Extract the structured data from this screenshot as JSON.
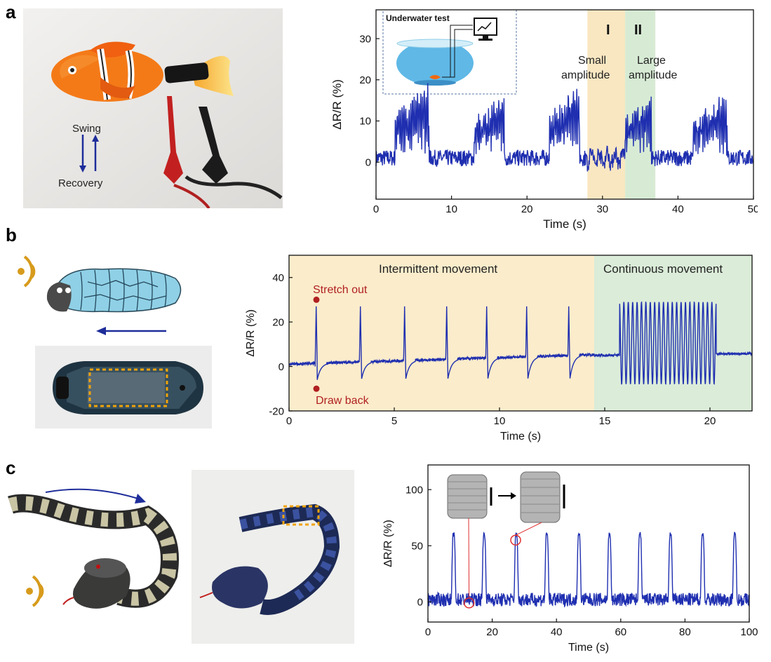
{
  "panel_letters": [
    "a",
    "b",
    "c"
  ],
  "panel_a": {
    "photo_labels": {
      "swing": "Swing",
      "recovery": "Recovery"
    },
    "inset_title": "Underwater test",
    "region_I": {
      "roman": "I",
      "label_line1": "Small",
      "label_line2": "amplitude"
    },
    "region_II": {
      "roman": "II",
      "label_line1": "Large",
      "label_line2": "amplitude"
    },
    "colors": {
      "region_I": "#f9e7c2",
      "region_II": "#d7ebd4",
      "signal": "#1f2fb0"
    }
  },
  "panel_b": {
    "region_1_label": "Intermittent movement",
    "region_2_label": "Continuous movement",
    "annot_stretch": "Stretch out",
    "annot_draw": "Draw back",
    "colors": {
      "region_1": "#fbeccb",
      "region_2": "#dbecd9",
      "annot": "#b02020",
      "signal": "#1f2fb0"
    }
  },
  "panel_c": {
    "colors": {
      "signal": "#1f2fb0",
      "circle": "#e03030"
    }
  },
  "chart_data": [
    {
      "type": "line",
      "xlabel": "Time (s)",
      "ylabel": "ΔR/R (%)",
      "xlim": [
        0,
        50
      ],
      "ylim": [
        -9,
        37
      ],
      "xticks": [
        0,
        10,
        20,
        30,
        40,
        50
      ],
      "yticks": [
        0,
        10,
        20,
        30
      ],
      "regions": [
        {
          "label": "I",
          "x": [
            28,
            33
          ]
        },
        {
          "label": "II",
          "x": [
            33,
            37
          ]
        }
      ],
      "bursts": [
        {
          "x": [
            2.5,
            7
          ],
          "amp": 14
        },
        {
          "x": [
            13,
            17
          ],
          "amp": 12
        },
        {
          "x": [
            23,
            27
          ],
          "amp": 14
        },
        {
          "x": [
            33,
            36.5
          ],
          "amp": 12
        },
        {
          "x": [
            42,
            46.5
          ],
          "amp": 12
        }
      ],
      "baseline": 1
    },
    {
      "type": "line",
      "xlabel": "Time (s)",
      "ylabel": "ΔR/R (%)",
      "xlim": [
        0,
        22
      ],
      "ylim": [
        -20,
        50
      ],
      "xticks": [
        0,
        5,
        10,
        15,
        20
      ],
      "yticks": [
        -20,
        0,
        20,
        40
      ],
      "regions": [
        {
          "label": "Intermittent movement",
          "x": [
            0,
            14.5
          ]
        },
        {
          "label": "Continuous movement",
          "x": [
            14.5,
            22
          ]
        }
      ],
      "spikes_x": [
        1.3,
        3.4,
        5.5,
        7.5,
        9.4,
        11.3,
        13.3
      ],
      "spike_peak": 27,
      "spike_trough": -6,
      "continuous": {
        "x": [
          15.7,
          20.3
        ],
        "high": 29,
        "low": -8,
        "cycles": 22
      },
      "points": [
        {
          "label": "Stretch out",
          "x": 1.3,
          "y": 30
        },
        {
          "label": "Draw back",
          "x": 1.3,
          "y": -10
        }
      ]
    },
    {
      "type": "line",
      "xlabel": "Time (s)",
      "ylabel": "ΔR/R (%)",
      "xlim": [
        0,
        100
      ],
      "ylim": [
        -18,
        122
      ],
      "xticks": [
        0,
        20,
        40,
        60,
        80,
        100
      ],
      "yticks": [
        0,
        50,
        100
      ],
      "peaks_x": [
        8,
        17.5,
        27.5,
        37,
        47,
        56.5,
        66,
        75.5,
        85.5,
        95.5
      ],
      "peak_height": 60,
      "circles": [
        {
          "x": 12.8,
          "y": -1
        },
        {
          "x": 27.3,
          "y": 55
        }
      ]
    }
  ]
}
